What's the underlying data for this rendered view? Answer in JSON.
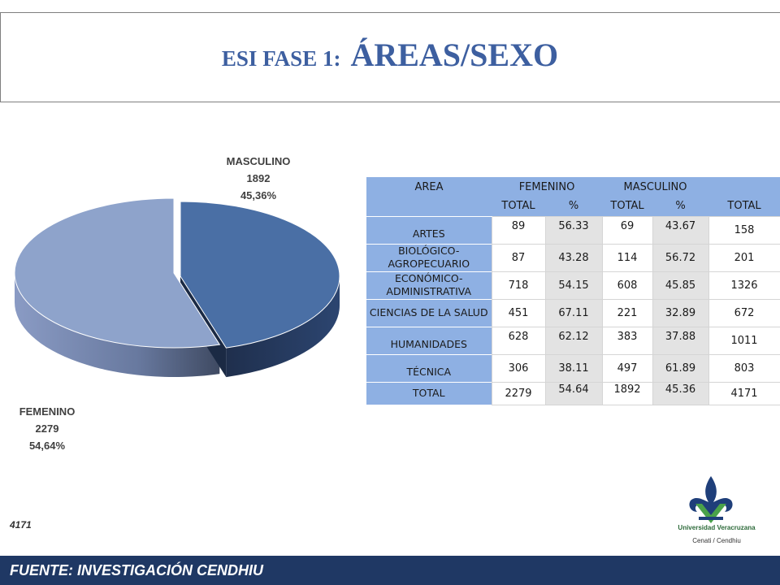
{
  "slide": {
    "title_prefix": "ESI FASE 1:",
    "title_main": "ÁREAS/SEXO",
    "total_note": "4171",
    "footer": "FUENTE:   INVESTIGACIÓN CENDHIU",
    "logo_line1": "Universidad Veracruzana",
    "logo_line2": "Cenati / Cendhiu"
  },
  "chart_data": {
    "type": "pie",
    "title": "",
    "slices": [
      {
        "name": "MASCULINO",
        "value": 1892,
        "percent": "45,36%",
        "color": "#4a6fa5"
      },
      {
        "name": "FEMENINO",
        "value": 2279,
        "percent": "54,64%",
        "color": "#8ea3cb"
      }
    ],
    "total": 4171,
    "labels_placement": "outside"
  },
  "table": {
    "header1": {
      "area": "AREA",
      "femenino": "FEMENINO",
      "masculino": "MASCULINO"
    },
    "header2": [
      "TOTAL",
      "%",
      "TOTAL",
      "%",
      "TOTAL"
    ],
    "rows": [
      {
        "area": "ARTES",
        "fem_total": "89",
        "fem_pct": "56.33",
        "masc_total": "69",
        "masc_pct": "43.67",
        "total": "158"
      },
      {
        "area": "BIOLÓGICO-AGROPECUARIO",
        "fem_total": "87",
        "fem_pct": "43.28",
        "masc_total": "114",
        "masc_pct": "56.72",
        "total": "201"
      },
      {
        "area": "ECONÓMICO-ADMINISTRATIVA",
        "fem_total": "718",
        "fem_pct": "54.15",
        "masc_total": "608",
        "masc_pct": "45.85",
        "total": "1326"
      },
      {
        "area": "CIENCIAS DE LA SALUD",
        "fem_total": "451",
        "fem_pct": "67.11",
        "masc_total": "221",
        "masc_pct": "32.89",
        "total": "672"
      },
      {
        "area": "HUMANIDADES",
        "fem_total": "628",
        "fem_pct": "62.12",
        "masc_total": "383",
        "masc_pct": "37.88",
        "total": "1011"
      },
      {
        "area": "TÉCNICA",
        "fem_total": "306",
        "fem_pct": "38.11",
        "masc_total": "497",
        "masc_pct": "61.89",
        "total": "803"
      },
      {
        "area": "TOTAL",
        "fem_total": "2279",
        "fem_pct": "54.64",
        "masc_total": "1892",
        "masc_pct": "45.36",
        "total": "4171"
      }
    ]
  },
  "colors": {
    "title": "#3d5fa0",
    "footer_bg": "#1f3864",
    "table_header": "#8eb0e3"
  }
}
